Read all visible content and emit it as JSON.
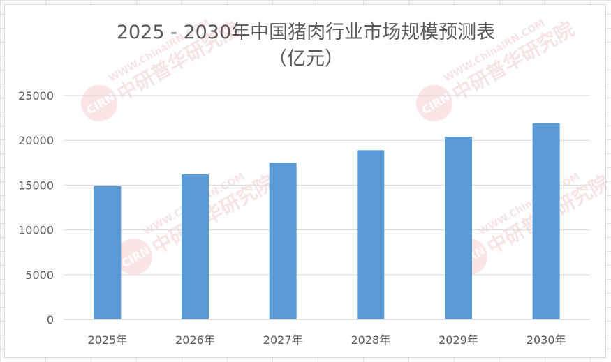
{
  "chart_data": {
    "type": "bar",
    "title_line1": "2025 - 2030年中国猪肉行业市场规模预测表",
    "title_line2": "（亿元）",
    "categories": [
      "2025年",
      "2026年",
      "2027年",
      "2028年",
      "2029年",
      "2030年"
    ],
    "values": [
      14900,
      16200,
      17500,
      18900,
      20400,
      21900
    ],
    "ylim": [
      0,
      25000
    ],
    "yticks": [
      "0",
      "5000",
      "10000",
      "15000",
      "20000",
      "25000"
    ],
    "grid": true,
    "bar_color": "#5B9BD5"
  },
  "watermark": {
    "badge": "CIRN",
    "site": "WWW.ChinaIRN.COM",
    "name": "中研普华研究院"
  }
}
